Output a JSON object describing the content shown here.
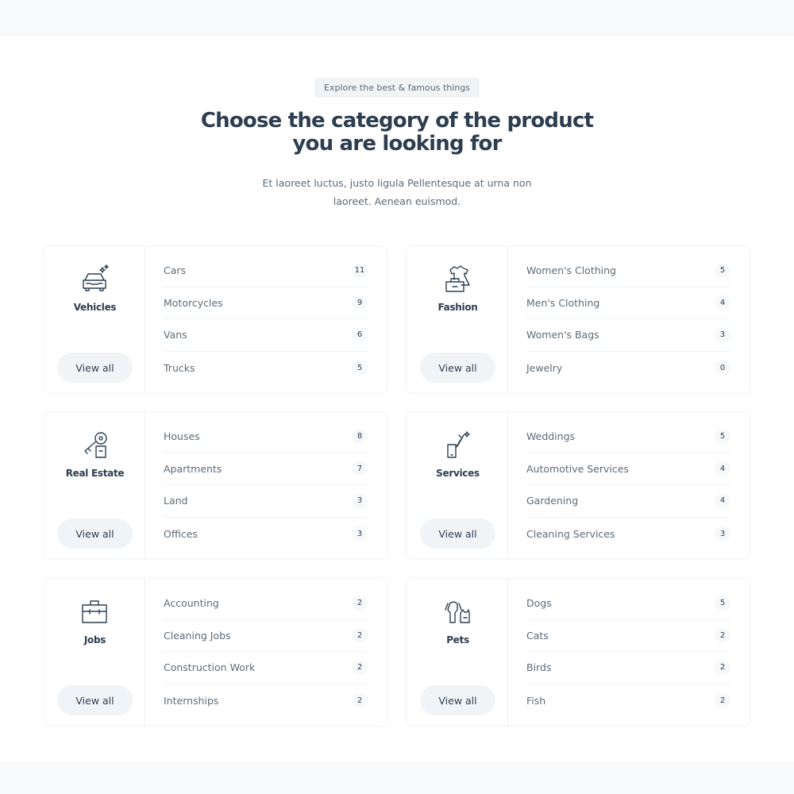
{
  "header": {
    "eyebrow": "Explore the best & famous things",
    "title_line1": "Choose the category of the product",
    "title_line2": "you are looking for",
    "subtitle_line1": "Et laoreet luctus, justo ligula Pellentesque at urna non",
    "subtitle_line2": "laoreet. Aenean euismod."
  },
  "view_all_label": "View all",
  "categories": [
    {
      "name": "Vehicles",
      "icon": "car-icon",
      "items": [
        {
          "label": "Cars",
          "count": "11"
        },
        {
          "label": "Motorcycles",
          "count": "9"
        },
        {
          "label": "Vans",
          "count": "6"
        },
        {
          "label": "Trucks",
          "count": "5"
        }
      ]
    },
    {
      "name": "Fashion",
      "icon": "clothing-icon",
      "items": [
        {
          "label": "Women's Clothing",
          "count": "5"
        },
        {
          "label": "Men's Clothing",
          "count": "4"
        },
        {
          "label": "Women's Bags",
          "count": "3"
        },
        {
          "label": "Jewelry",
          "count": "0"
        }
      ]
    },
    {
      "name": "Real Estate",
      "icon": "house-key-icon",
      "items": [
        {
          "label": "Houses",
          "count": "8"
        },
        {
          "label": "Apartments",
          "count": "7"
        },
        {
          "label": "Land",
          "count": "3"
        },
        {
          "label": "Offices",
          "count": "3"
        }
      ]
    },
    {
      "name": "Services",
      "icon": "tools-icon",
      "items": [
        {
          "label": "Weddings",
          "count": "5"
        },
        {
          "label": "Automotive Services",
          "count": "4"
        },
        {
          "label": "Gardening",
          "count": "4"
        },
        {
          "label": "Cleaning Services",
          "count": "3"
        }
      ]
    },
    {
      "name": "Jobs",
      "icon": "briefcase-icon",
      "items": [
        {
          "label": "Accounting",
          "count": "2"
        },
        {
          "label": "Cleaning Jobs",
          "count": "2"
        },
        {
          "label": "Construction Work",
          "count": "2"
        },
        {
          "label": "Internships",
          "count": "2"
        }
      ]
    },
    {
      "name": "Pets",
      "icon": "pets-icon",
      "items": [
        {
          "label": "Dogs",
          "count": "5"
        },
        {
          "label": "Cats",
          "count": "2"
        },
        {
          "label": "Birds",
          "count": "2"
        },
        {
          "label": "Fish",
          "count": "2"
        }
      ]
    }
  ]
}
